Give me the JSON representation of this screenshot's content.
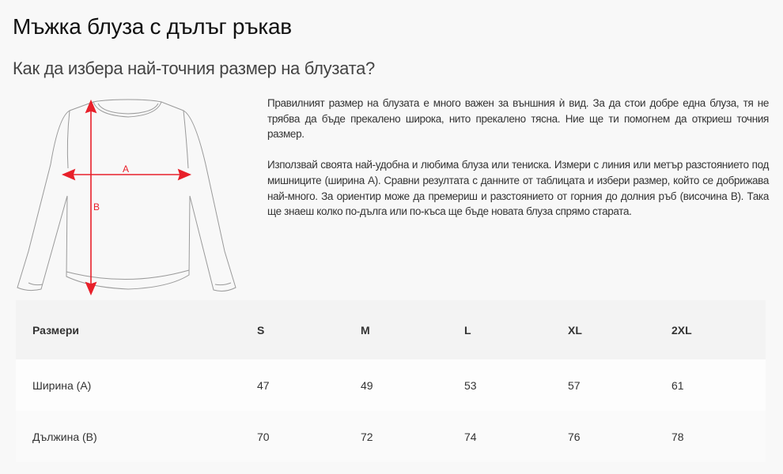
{
  "page": {
    "title": "Мъжка блуза с дълъг ръкав",
    "subtitle": "Как да избера най-точния размер на блузата?"
  },
  "illustration": {
    "label_a": "A",
    "label_b": "B",
    "arrow_color": "#e8202a"
  },
  "description": {
    "paragraphs": [
      "Правилният размер на блузата е много важен за външния ѝ вид. За да стои добре една блуза, тя не трябва да бъде прекалено широка, нито прекалено тясна. Ние ще ти помогнем да откриеш точния размер.",
      "Използвай своята най-удобна и любима блуза или тениска. Измери с линия или метър разстоянието под мишниците (ширина А). Сравни резултата с данните от таблицата и избери размер, който се добрижава най-много. За ориентир може да премериш и разстоянието от горния до долния ръб (височина В). Така ще знаеш колко по-дълга или по-къса ще бъде новата блуза спрямо старата."
    ]
  },
  "size_table": {
    "header": [
      "Размери",
      "S",
      "M",
      "L",
      "XL",
      "2XL"
    ],
    "rows": [
      [
        "Ширина (А)",
        "47",
        "49",
        "53",
        "57",
        "61"
      ],
      [
        "Дължина (В)",
        "70",
        "72",
        "74",
        "76",
        "78"
      ]
    ]
  }
}
